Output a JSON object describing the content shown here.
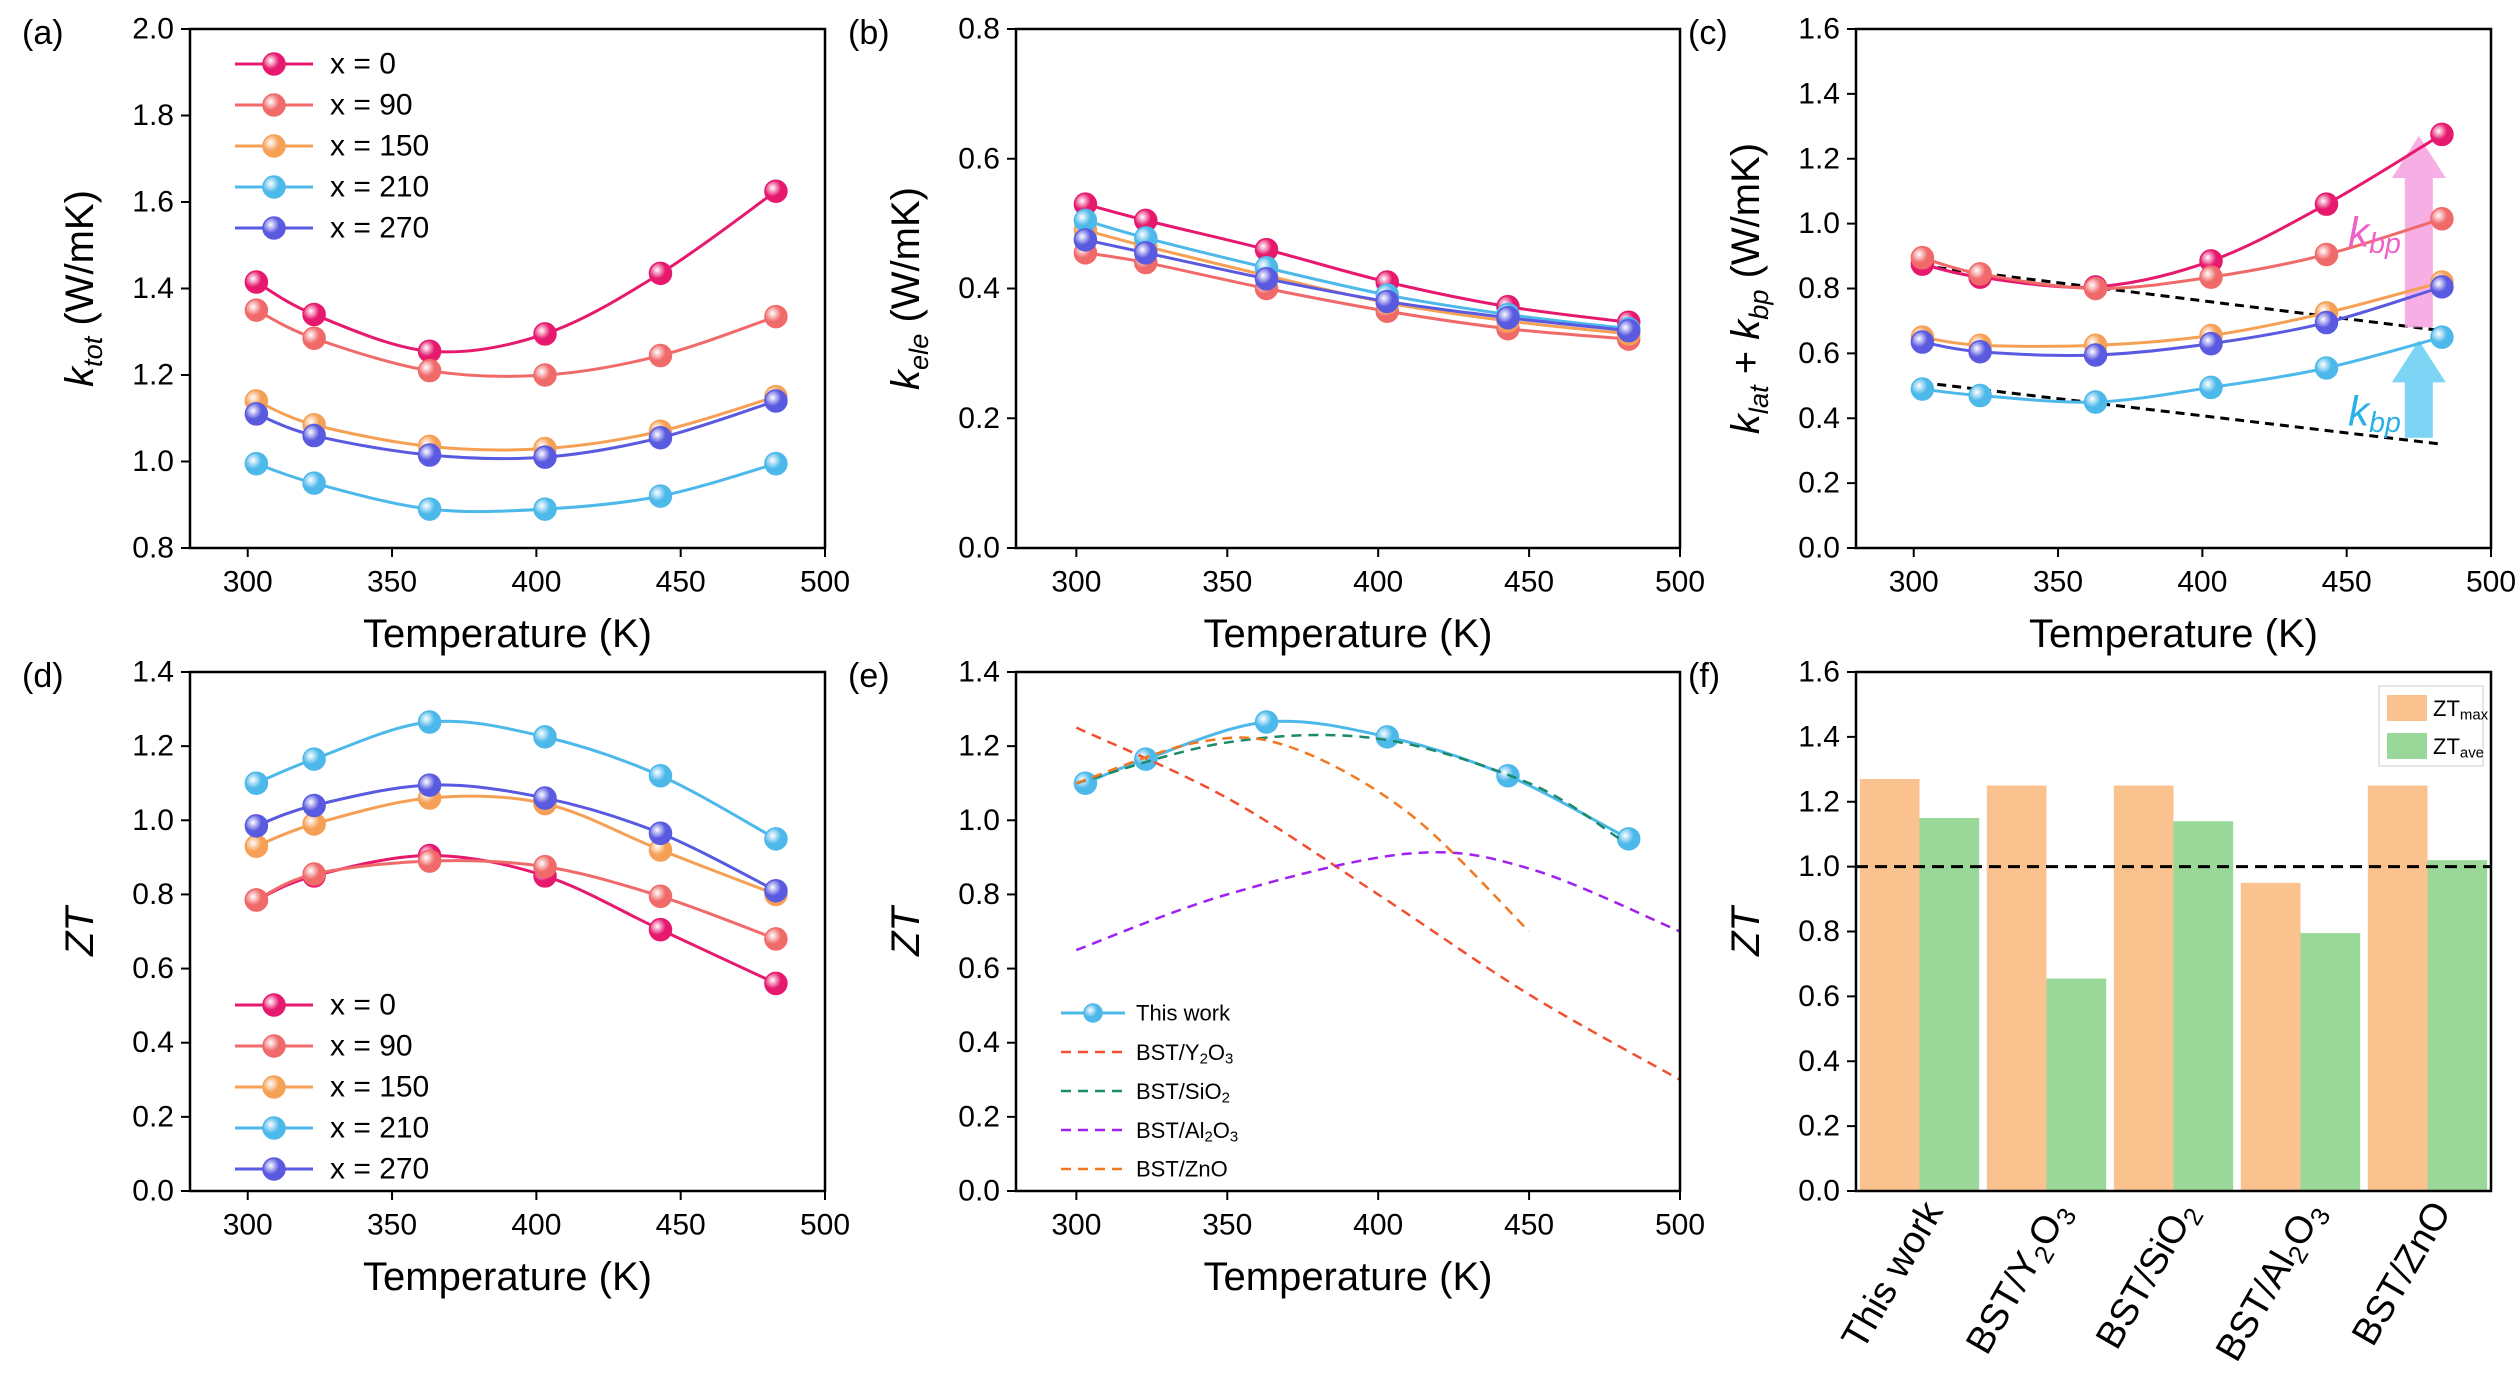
{
  "chart_data": [
    {
      "type": "line",
      "panel_label": "(a)",
      "xlabel": "Temperature (K)",
      "ylabel": [
        {
          "t": "k",
          "i": true
        },
        {
          "t": "tot",
          "i": true,
          "sub": true
        },
        {
          "t": " (W/mK)"
        }
      ],
      "xlim": [
        280,
        500
      ],
      "xticks": [
        300,
        350,
        400,
        450,
        500
      ],
      "ylim": [
        0.8,
        2.0
      ],
      "yticks": [
        0.8,
        {
          "value": 1.0,
          "label": "1.0"
        },
        1.2,
        1.4,
        1.6,
        1.8,
        {
          "value": 2.0,
          "label": "2.0"
        }
      ],
      "x": [
        303,
        323,
        363,
        403,
        443,
        483
      ],
      "smooth": true,
      "legend": "upper left",
      "series": [
        {
          "name": "x = 0",
          "color": "#e6196e",
          "marker": true,
          "values": [
            1.415,
            1.34,
            1.255,
            1.295,
            1.435,
            1.625
          ]
        },
        {
          "name": "x = 90",
          "color": "#f06a6a",
          "marker": true,
          "values": [
            1.35,
            1.285,
            1.21,
            1.2,
            1.245,
            1.335
          ]
        },
        {
          "name": "x = 150",
          "color": "#f5a055",
          "marker": true,
          "values": [
            1.14,
            1.085,
            1.035,
            1.03,
            1.07,
            1.15
          ]
        },
        {
          "name": "x = 210",
          "color": "#4db8ea",
          "marker": true,
          "values": [
            0.995,
            0.95,
            0.89,
            0.89,
            0.92,
            0.995
          ]
        },
        {
          "name": "x = 270",
          "color": "#5a5ae0",
          "marker": true,
          "values": [
            1.11,
            1.06,
            1.015,
            1.01,
            1.055,
            1.14
          ]
        }
      ]
    },
    {
      "type": "line",
      "panel_label": "(b)",
      "xlabel": "Temperature (K)",
      "ylabel": [
        {
          "t": "k",
          "i": true
        },
        {
          "t": "ele",
          "i": true,
          "sub": true
        },
        {
          "t": " (W/mK)"
        }
      ],
      "xlim": [
        280,
        500
      ],
      "xticks": [
        300,
        350,
        400,
        450,
        500
      ],
      "ylim": [
        0,
        0.8
      ],
      "yticks": [
        {
          "value": 0,
          "label": "0.0"
        },
        0.2,
        0.4,
        0.6,
        0.8
      ],
      "x": [
        303,
        323,
        363,
        403,
        443,
        483
      ],
      "smooth": true,
      "series": [
        {
          "color": "#e6196e",
          "marker": true,
          "values": [
            0.53,
            0.505,
            0.46,
            0.41,
            0.372,
            0.348
          ]
        },
        {
          "color": "#f06a6a",
          "marker": true,
          "values": [
            0.455,
            0.44,
            0.4,
            0.365,
            0.338,
            0.322
          ]
        },
        {
          "color": "#f5a055",
          "marker": true,
          "values": [
            0.49,
            0.465,
            0.42,
            0.378,
            0.35,
            0.33
          ]
        },
        {
          "color": "#4db8ea",
          "marker": true,
          "values": [
            0.505,
            0.478,
            0.432,
            0.39,
            0.36,
            0.338
          ]
        },
        {
          "color": "#5a5ae0",
          "marker": true,
          "values": [
            0.475,
            0.455,
            0.415,
            0.38,
            0.355,
            0.335
          ]
        }
      ]
    },
    {
      "type": "line",
      "panel_label": "(c)",
      "xlabel": "Temperature (K)",
      "ylabel": [
        {
          "t": "k",
          "i": true
        },
        {
          "t": "lat",
          "i": true,
          "sub": true
        },
        {
          "t": " + "
        },
        {
          "t": "k",
          "i": true
        },
        {
          "t": "bp",
          "i": true,
          "sub": true
        },
        {
          "t": " (W/mK)"
        }
      ],
      "xlim": [
        280,
        500
      ],
      "xticks": [
        300,
        350,
        400,
        450,
        500
      ],
      "ylim": [
        0,
        1.6
      ],
      "yticks": [
        {
          "value": 0,
          "label": "0.0"
        },
        0.2,
        0.4,
        0.6,
        0.8,
        {
          "value": 1.0,
          "label": "1.0"
        },
        1.2,
        1.4,
        1.6
      ],
      "x": [
        303,
        323,
        363,
        403,
        443,
        483
      ],
      "smooth": true,
      "series": [
        {
          "color": "#e6196e",
          "marker": true,
          "values": [
            0.875,
            0.835,
            0.805,
            0.885,
            1.06,
            1.275
          ]
        },
        {
          "color": "#f06a6a",
          "marker": true,
          "values": [
            0.895,
            0.845,
            0.8,
            0.835,
            0.905,
            1.015
          ]
        },
        {
          "color": "#f5a055",
          "marker": true,
          "values": [
            0.65,
            0.625,
            0.625,
            0.655,
            0.725,
            0.82
          ]
        },
        {
          "color": "#4db8ea",
          "marker": true,
          "values": [
            0.49,
            0.47,
            0.45,
            0.495,
            0.555,
            0.65
          ]
        },
        {
          "color": "#5a5ae0",
          "marker": true,
          "values": [
            0.635,
            0.605,
            0.595,
            0.63,
            0.695,
            0.805
          ]
        }
      ],
      "reference_lines": [
        {
          "x": [
            303,
            483
          ],
          "values": [
            0.87,
            0.67
          ],
          "color": "#000000",
          "dashed": true
        },
        {
          "x": [
            303,
            483
          ],
          "values": [
            0.51,
            0.32
          ],
          "color": "#000000",
          "dashed": true
        }
      ],
      "arrows": [
        {
          "x": 475,
          "values": [
            0.68,
            1.27
          ],
          "color": "#f5a0e0"
        },
        {
          "x": 475,
          "values": [
            0.34,
            0.64
          ],
          "color": "#66ccf2"
        }
      ],
      "annotations": [
        {
          "text": [
            {
              "t": "k",
              "i": true
            },
            {
              "t": "bp",
              "i": true,
              "sub": true
            }
          ],
          "color": "#f060c8"
        },
        {
          "text": [
            {
              "t": "k",
              "i": true
            },
            {
              "t": "bp",
              "i": true,
              "sub": true
            }
          ],
          "color": "#2ab0e8"
        }
      ]
    },
    {
      "type": "line",
      "panel_label": "(d)",
      "xlabel": "Temperature (K)",
      "ylabel": [
        {
          "t": "ZT",
          "i": true
        }
      ],
      "xlim": [
        280,
        500
      ],
      "xticks": [
        300,
        350,
        400,
        450,
        500
      ],
      "ylim": [
        0,
        1.4
      ],
      "yticks": [
        {
          "value": 0,
          "label": "0.0"
        },
        0.2,
        0.4,
        0.6,
        0.8,
        {
          "value": 1.0,
          "label": "1.0"
        },
        1.2,
        1.4
      ],
      "x": [
        303,
        323,
        363,
        403,
        443,
        483
      ],
      "smooth": true,
      "legend": "lower left",
      "series": [
        {
          "name": "x = 0",
          "color": "#e6196e",
          "marker": true,
          "values": [
            0.785,
            0.85,
            0.905,
            0.85,
            0.705,
            0.56
          ]
        },
        {
          "name": "x = 90",
          "color": "#f06a6a",
          "marker": true,
          "values": [
            0.785,
            0.855,
            0.89,
            0.875,
            0.795,
            0.68
          ]
        },
        {
          "name": "x = 150",
          "color": "#f5a055",
          "marker": true,
          "values": [
            0.93,
            0.99,
            1.06,
            1.045,
            0.92,
            0.8
          ]
        },
        {
          "name": "x = 210",
          "color": "#4db8ea",
          "marker": true,
          "values": [
            1.1,
            1.165,
            1.265,
            1.225,
            1.12,
            0.95
          ]
        },
        {
          "name": "x = 270",
          "color": "#5a5ae0",
          "marker": true,
          "values": [
            0.985,
            1.04,
            1.095,
            1.06,
            0.965,
            0.81
          ]
        }
      ]
    },
    {
      "type": "line",
      "panel_label": "(e)",
      "xlabel": "Temperature (K)",
      "ylabel": [
        {
          "t": "ZT",
          "i": true
        }
      ],
      "xlim": [
        280,
        500
      ],
      "xticks": [
        300,
        350,
        400,
        450,
        500
      ],
      "ylim": [
        0,
        1.4
      ],
      "yticks": [
        {
          "value": 0,
          "label": "0.0"
        },
        0.2,
        0.4,
        0.6,
        0.8,
        {
          "value": 1.0,
          "label": "1.0"
        },
        1.2,
        1.4
      ],
      "smooth": true,
      "legend": "lower left",
      "series": [
        {
          "name": "This work",
          "color": "#4db8ea",
          "marker": true,
          "x": [
            303,
            323,
            363,
            403,
            443,
            483
          ],
          "values": [
            1.1,
            1.165,
            1.265,
            1.225,
            1.12,
            0.95
          ]
        },
        {
          "name": [
            {
              "t": "BST/Y"
            },
            {
              "t": "2",
              "sub": true
            },
            {
              "t": "O"
            },
            {
              "t": "3",
              "sub": true
            }
          ],
          "color": "#f05030",
          "dashed": true,
          "x": [
            300,
            350,
            400,
            450,
            500
          ],
          "values": [
            1.25,
            1.06,
            0.8,
            0.53,
            0.3
          ]
        },
        {
          "name": [
            {
              "t": "BST/SiO"
            },
            {
              "t": "2",
              "sub": true
            }
          ],
          "color": "#1a8a6a",
          "dashed": true,
          "x": [
            300,
            350,
            400,
            450,
            480
          ],
          "values": [
            1.1,
            1.21,
            1.22,
            1.1,
            0.95
          ]
        },
        {
          "name": [
            {
              "t": "BST/Al"
            },
            {
              "t": "2",
              "sub": true
            },
            {
              "t": "O"
            },
            {
              "t": "3",
              "sub": true
            }
          ],
          "color": "#a020f0",
          "dashed": true,
          "x": [
            300,
            350,
            410,
            450,
            500
          ],
          "values": [
            0.65,
            0.8,
            0.91,
            0.87,
            0.7
          ]
        },
        {
          "name": "BST/ZnO",
          "color": "#f07820",
          "dashed": true,
          "x": [
            300,
            340,
            370,
            410,
            450
          ],
          "values": [
            1.1,
            1.21,
            1.2,
            1.02,
            0.7
          ]
        }
      ]
    },
    {
      "type": "bar",
      "panel_label": "(f)",
      "ylabel": [
        {
          "t": "ZT",
          "i": true
        }
      ],
      "ylim": [
        0,
        1.6
      ],
      "yticks": [
        {
          "value": 0,
          "label": "0.0"
        },
        0.2,
        0.4,
        0.6,
        0.8,
        {
          "value": 1.0,
          "label": "1.0"
        },
        1.2,
        1.4,
        1.6
      ],
      "categories": [
        "This work",
        [
          {
            "t": "BST/Y"
          },
          {
            "t": "2",
            "sub": true
          },
          {
            "t": "O"
          },
          {
            "t": "3",
            "sub": true
          }
        ],
        [
          {
            "t": "BST/SiO"
          },
          {
            "t": "2",
            "sub": true
          }
        ],
        [
          {
            "t": "BST/Al"
          },
          {
            "t": "2",
            "sub": true
          },
          {
            "t": "O"
          },
          {
            "t": "3",
            "sub": true
          }
        ],
        "BST/ZnO"
      ],
      "category_colors": [
        "#e8000b",
        "#000000",
        "#000000",
        "#000000",
        "#000000"
      ],
      "legend": "upper right",
      "series": [
        {
          "name": [
            {
              "t": "ZT"
            },
            {
              "t": "max",
              "sub": true
            }
          ],
          "color": "#f9c28f",
          "values": [
            1.27,
            1.25,
            1.25,
            0.95,
            1.25
          ]
        },
        {
          "name": [
            {
              "t": "ZT"
            },
            {
              "t": "ave",
              "sub": true
            }
          ],
          "color": "#9ad89a",
          "values": [
            1.15,
            0.655,
            1.14,
            0.795,
            1.02
          ]
        }
      ],
      "reference_lines": [
        {
          "y": 1.0,
          "color": "#000000",
          "dashed": true
        }
      ]
    }
  ]
}
